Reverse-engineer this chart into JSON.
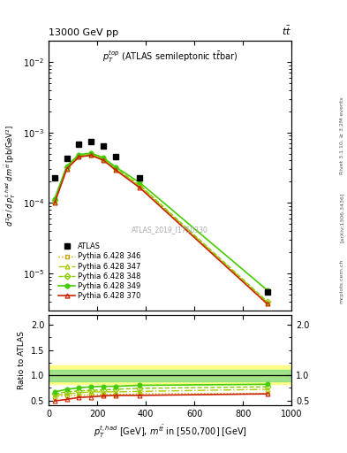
{
  "atlas_x": [
    25,
    75,
    125,
    175,
    225,
    275,
    375,
    900
  ],
  "atlas_y": [
    0.00023,
    0.00043,
    0.00069,
    0.00075,
    0.00065,
    0.00045,
    0.00023,
    5.5e-06
  ],
  "mc_x": [
    25,
    75,
    125,
    175,
    225,
    275,
    375,
    900
  ],
  "p346_y": [
    0.0001,
    0.00031,
    0.00046,
    0.00048,
    0.00041,
    0.0003,
    0.00017,
    3.8e-06
  ],
  "p347_y": [
    0.000105,
    0.000315,
    0.000465,
    0.000485,
    0.000415,
    0.000305,
    0.000175,
    3.9e-06
  ],
  "p348_y": [
    0.00011,
    0.00032,
    0.00047,
    0.00049,
    0.00042,
    0.00031,
    0.00018,
    4e-06
  ],
  "p349_y": [
    0.000115,
    0.000335,
    0.000485,
    0.00051,
    0.00044,
    0.000325,
    0.000195,
    5.8e-06
  ],
  "p370_y": [
    0.0001,
    0.000305,
    0.00045,
    0.000475,
    0.000405,
    0.000295,
    0.000165,
    3.7e-06
  ],
  "ratio_x": [
    25,
    75,
    125,
    175,
    225,
    275,
    375,
    900
  ],
  "r346_y": [
    0.57,
    0.6,
    0.6,
    0.61,
    0.62,
    0.62,
    0.63,
    0.64
  ],
  "r347_y": [
    0.6,
    0.63,
    0.65,
    0.67,
    0.67,
    0.67,
    0.68,
    0.72
  ],
  "r348_y": [
    0.63,
    0.67,
    0.69,
    0.7,
    0.71,
    0.72,
    0.74,
    0.77
  ],
  "r349_y": [
    0.67,
    0.72,
    0.75,
    0.77,
    0.78,
    0.78,
    0.8,
    0.82
  ],
  "r370_y": [
    0.49,
    0.52,
    0.56,
    0.57,
    0.59,
    0.6,
    0.6,
    0.63
  ],
  "band_green_lo": 0.88,
  "band_green_hi": 1.1,
  "band_yellow_lo": 0.82,
  "band_yellow_hi": 1.2,
  "color_346": "#c8a000",
  "color_347": "#aacc00",
  "color_348": "#88cc00",
  "color_349": "#44cc00",
  "color_370": "#cc2200",
  "xlim": [
    0,
    1000
  ],
  "ylim_main": [
    3e-06,
    0.02
  ],
  "ylim_ratio": [
    0.4,
    2.2
  ]
}
